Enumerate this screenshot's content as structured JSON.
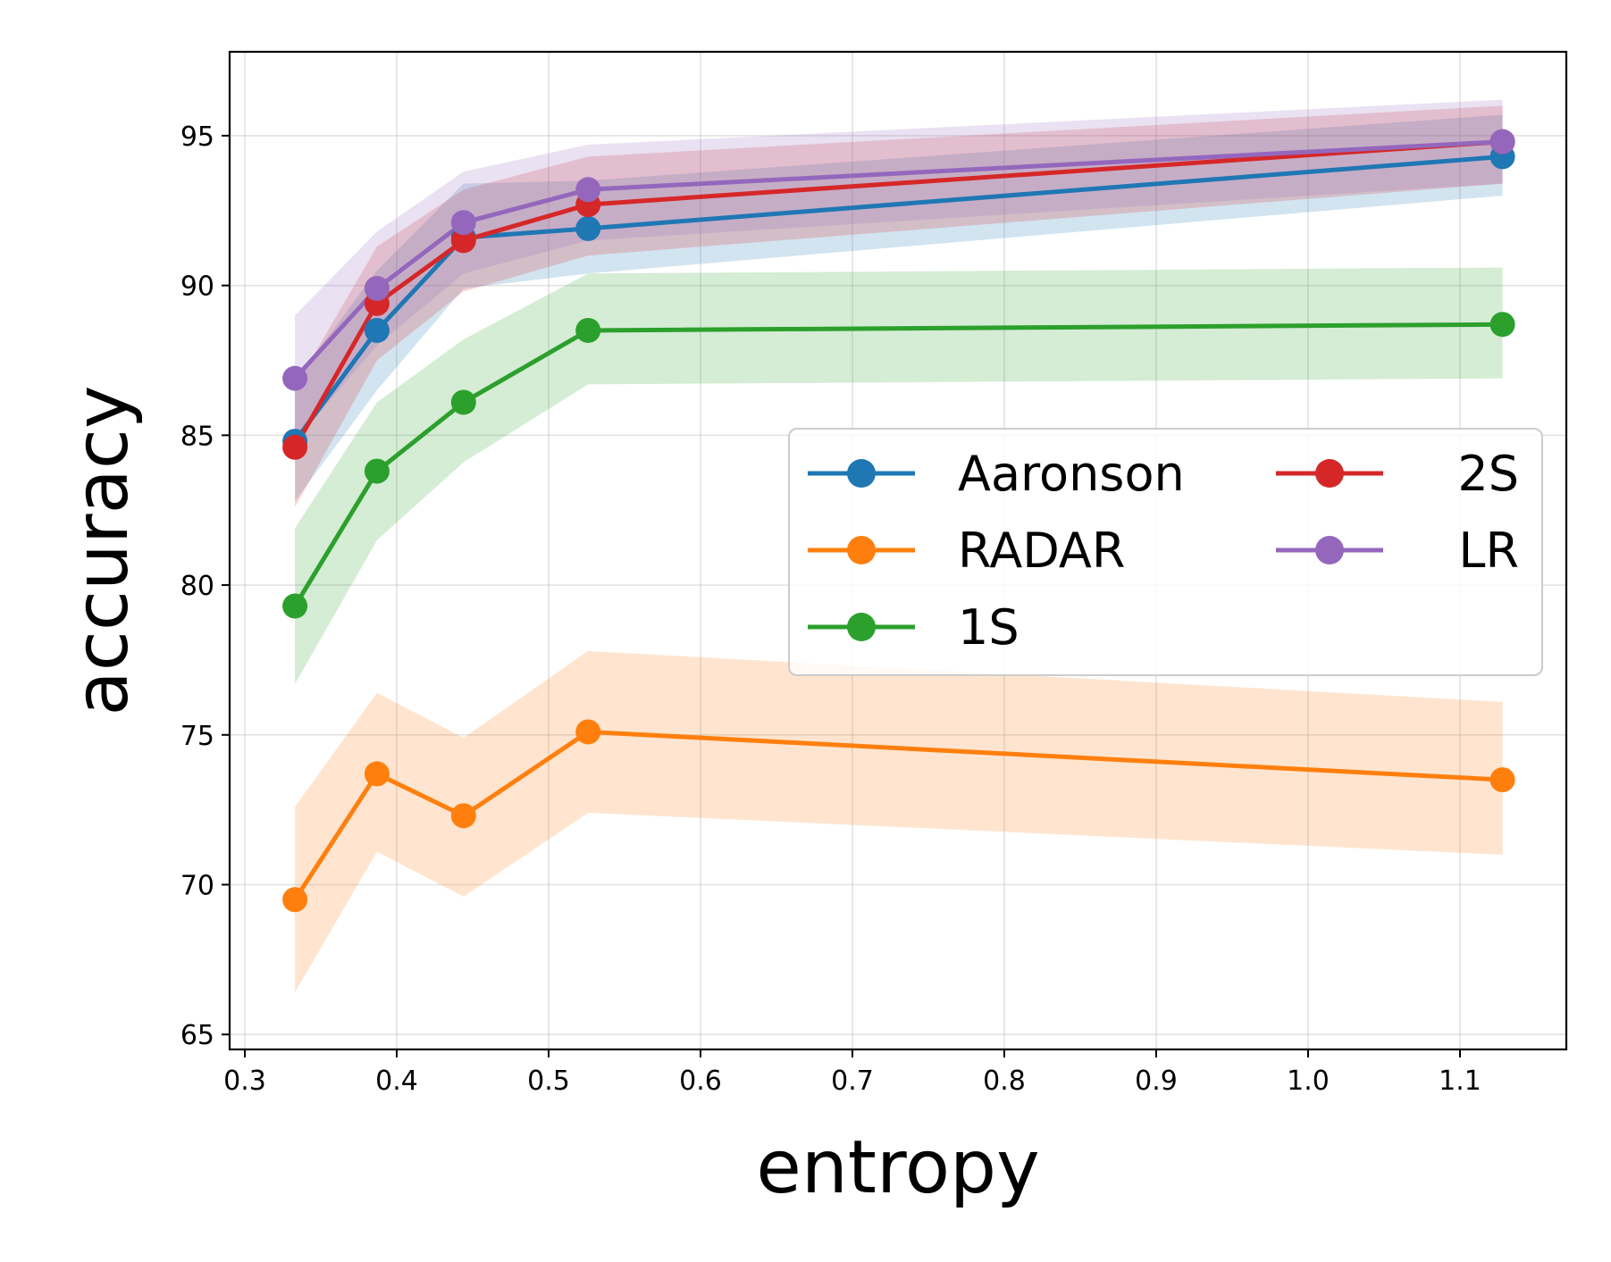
{
  "chart_data": {
    "type": "line",
    "title": "",
    "xlabel": "entropy",
    "ylabel": "accuracy",
    "xlim": [
      0.29,
      1.17
    ],
    "ylim": [
      64.5,
      97.8
    ],
    "xticks": [
      0.3,
      0.4,
      0.5,
      0.6,
      0.7,
      0.8,
      0.9,
      1.0,
      1.1
    ],
    "xtick_labels": [
      "0.3",
      "0.4",
      "0.5",
      "0.6",
      "0.7",
      "0.8",
      "0.9",
      "1.0",
      "1.1"
    ],
    "yticks": [
      65,
      70,
      75,
      80,
      85,
      90,
      95
    ],
    "ytick_labels": [
      "65",
      "70",
      "75",
      "80",
      "85",
      "90",
      "95"
    ],
    "grid": true,
    "legend": {
      "placement": "center-right",
      "columns": 2
    },
    "x": [
      0.333,
      0.387,
      0.444,
      0.526,
      1.128
    ],
    "series": [
      {
        "name": "Aaronson",
        "color": "#1f77b4",
        "values": [
          84.8,
          88.5,
          91.6,
          91.9,
          94.3
        ],
        "lower": [
          82.8,
          86.5,
          89.9,
          90.4,
          93.0
        ],
        "upper": [
          86.8,
          90.5,
          93.4,
          93.5,
          95.7
        ]
      },
      {
        "name": "RADAR",
        "color": "#ff7f0e",
        "values": [
          69.5,
          73.7,
          72.3,
          75.1,
          73.5
        ],
        "lower": [
          66.4,
          71.1,
          69.6,
          72.4,
          71.0
        ],
        "upper": [
          72.6,
          76.4,
          74.9,
          77.8,
          76.1
        ]
      },
      {
        "name": "1S",
        "color": "#2ca02c",
        "values": [
          79.3,
          83.8,
          86.1,
          88.5,
          88.7
        ],
        "lower": [
          76.7,
          81.5,
          84.1,
          86.7,
          86.9
        ],
        "upper": [
          81.9,
          86.1,
          88.2,
          90.4,
          90.6
        ]
      },
      {
        "name": "2S",
        "color": "#d62728",
        "values": [
          84.6,
          89.4,
          91.5,
          92.7,
          94.8
        ],
        "lower": [
          82.6,
          87.5,
          89.8,
          91.0,
          93.4
        ],
        "upper": [
          86.6,
          91.3,
          93.2,
          94.3,
          96.0
        ]
      },
      {
        "name": "LR",
        "color": "#9467bd",
        "values": [
          86.9,
          89.9,
          92.1,
          93.2,
          94.8
        ],
        "lower": [
          84.8,
          88.0,
          90.4,
          91.5,
          93.4
        ],
        "upper": [
          89.0,
          91.8,
          93.8,
          94.7,
          96.2
        ]
      }
    ]
  }
}
